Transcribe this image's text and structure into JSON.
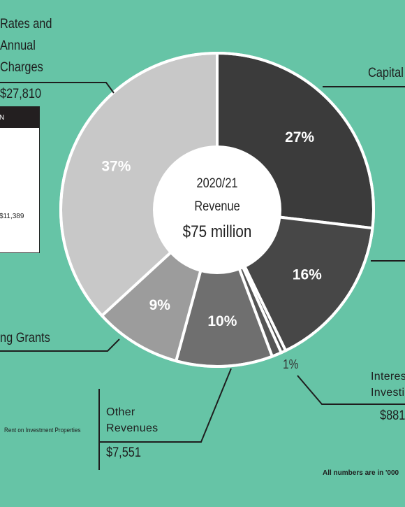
{
  "chart_data": {
    "type": "pie",
    "donut": true,
    "center": {
      "line1": "2020/21",
      "line2": "Revenue",
      "line3": "$75 million"
    },
    "slices": [
      {
        "label": "Capital",
        "value": 27,
        "display": "27%",
        "color": "#3b3b3b",
        "text_color": "#ffffff"
      },
      {
        "label": "",
        "value": 16,
        "display": "16%",
        "color": "#474747",
        "text_color": "#ffffff"
      },
      {
        "label": "",
        "value": 0.5,
        "display": "",
        "color": "#4a4a4a",
        "text_color": "#ffffff"
      },
      {
        "label": "Interest on Investments",
        "value": 1,
        "display": "1%",
        "color": "#555555",
        "text_color": "#ffffff"
      },
      {
        "label": "Other Revenues",
        "value": 10,
        "display": "10%",
        "color": "#6f6f6f",
        "text_color": "#ffffff"
      },
      {
        "label": "Grants",
        "value": 9,
        "display": "9%",
        "color": "#9c9c9c",
        "text_color": "#ffffff"
      },
      {
        "label": "Rates and Annual Charges",
        "value": 37,
        "display": "37%",
        "color": "#c8c8c8",
        "text_color": "#ffffff"
      }
    ]
  },
  "labels": {
    "rates_line1": "Rates and",
    "rates_line2": "Annual",
    "rates_line3": "Charges",
    "rates_amount": "$27,810",
    "capital": "Capital",
    "grants": "ng Grants",
    "interest_line1": "Interes",
    "interest_line2": "Investi",
    "interest_amount": "$881",
    "interest_pct": "1%",
    "other_line1": "Other",
    "other_line2": "Revenues",
    "other_amount": "$7,551",
    "rent": "Rent on Investment Properties",
    "footnote": "All numbers are in '000"
  },
  "inset": {
    "header": "N",
    "value": "$11,389"
  },
  "colors": {
    "background": "#66c4a6",
    "line": "#1e1e1e"
  }
}
